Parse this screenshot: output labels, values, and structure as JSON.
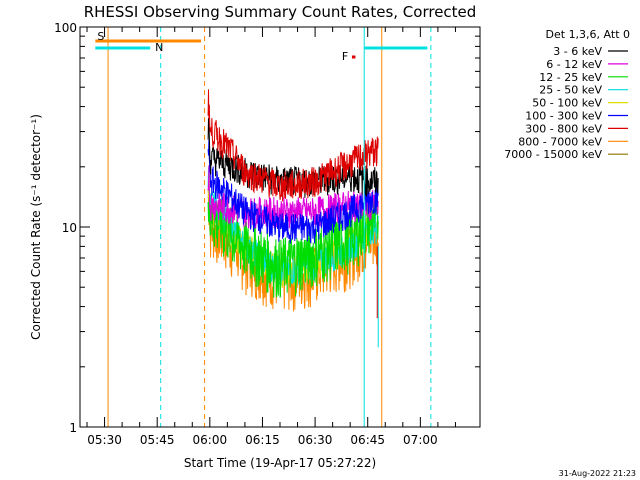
{
  "chart_data": {
    "type": "line",
    "title": "RHESSI Observing Summary Count Rates, Corrected",
    "xlabel": "Start Time (19-Apr-17 05:27:22)",
    "ylabel": "Corrected Count Rate (s⁻¹ detector⁻¹)",
    "y_scale": "log",
    "ylim": [
      1,
      100
    ],
    "y_ticks": [
      1,
      10,
      100
    ],
    "y_tick_labels": [
      "1",
      "10",
      "100"
    ],
    "xlim_minutes_after_0500": [
      23,
      80
    ],
    "x_ticks": [
      {
        "t": 30,
        "label": "05:30"
      },
      {
        "t": 45,
        "label": "05:45"
      },
      {
        "t": 60,
        "label": "06:00"
      },
      {
        "t": 75,
        "label": "06:15"
      },
      {
        "t": 90,
        "label": "06:30"
      },
      {
        "t": 105,
        "label": "06:45"
      },
      {
        "t": 120,
        "label": "07:00"
      }
    ],
    "legend_title": "Det 1,3,6, Att 0",
    "legend_position": "right-outside",
    "series": [
      {
        "name": "3 - 6 keV",
        "color": "#000000",
        "times": [
          "06:01",
          "06:10",
          "06:20",
          "06:30",
          "06:40",
          "06:46"
        ],
        "values": [
          22,
          19,
          17,
          17,
          18,
          17
        ]
      },
      {
        "name": "6 - 12 keV",
        "color": "#dd00dd",
        "times": [
          "06:01",
          "06:10",
          "06:20",
          "06:30",
          "06:40",
          "06:46"
        ],
        "values": [
          13,
          12,
          12,
          12,
          13,
          13
        ]
      },
      {
        "name": "12 - 25 keV",
        "color": "#00dd00",
        "times": [
          "06:01",
          "06:10",
          "06:20",
          "06:30",
          "06:40",
          "06:46"
        ],
        "values": [
          11,
          8,
          6.5,
          7.5,
          9,
          11
        ]
      },
      {
        "name": "25 - 50 keV",
        "color": "#00dddd",
        "times": [
          "06:01",
          "06:10",
          "06:20",
          "06:30",
          "06:40",
          "06:46"
        ],
        "values": [
          13,
          8,
          6,
          6.5,
          8,
          10
        ]
      },
      {
        "name": "50 - 100 keV",
        "color": "#dddd00",
        "times": [
          "06:01",
          "06:10",
          "06:20",
          "06:30",
          "06:40",
          "06:46"
        ],
        "values": [
          12,
          8,
          6,
          6.5,
          8,
          10
        ]
      },
      {
        "name": "100 - 300 keV",
        "color": "#0000ff",
        "times": [
          "06:01",
          "06:10",
          "06:20",
          "06:30",
          "06:40",
          "06:46"
        ],
        "values": [
          17,
          12,
          10,
          10,
          12,
          14
        ]
      },
      {
        "name": "300 - 800 keV",
        "color": "#dd0000",
        "times": [
          "06:01",
          "06:10",
          "06:20",
          "06:30",
          "06:40",
          "06:46"
        ],
        "values": [
          30,
          19,
          16,
          17,
          21,
          24
        ]
      },
      {
        "name": "800 - 7000 keV",
        "color": "#ff8800",
        "times": [
          "06:01",
          "06:10",
          "06:20",
          "06:30",
          "06:40",
          "06:46"
        ],
        "values": [
          10,
          7,
          5.5,
          6,
          7.5,
          9
        ]
      },
      {
        "name": "7000 - 15000 keV",
        "color": "#8b7300",
        "times": [],
        "values": []
      }
    ],
    "flags": [
      {
        "label": "S",
        "color": "#ff8800",
        "start": "05:27:22",
        "end": "05:57:30"
      },
      {
        "label": "N",
        "color": "#00e0e0",
        "start": "05:27:22",
        "end": "05:43:00"
      },
      {
        "label": "F",
        "color": "#dd0000",
        "start": "06:40:30",
        "end": "06:41:30"
      },
      {
        "label": "",
        "color": "#00e0e0",
        "start": "06:44:00",
        "end": "07:02:00"
      }
    ],
    "markers": [
      {
        "time": "05:31:00",
        "color": "#ff8800",
        "style": "solid"
      },
      {
        "time": "05:46:00",
        "color": "#00e0e0",
        "style": "dashed"
      },
      {
        "time": "05:58:30",
        "color": "#ff8800",
        "style": "dashed"
      },
      {
        "time": "06:44:00",
        "color": "#00e0e0",
        "style": "solid"
      },
      {
        "time": "06:49:00",
        "color": "#ff8800",
        "style": "solid"
      },
      {
        "time": "07:03:00",
        "color": "#00e0e0",
        "style": "dashed"
      }
    ],
    "data_window": [
      "05:59:30",
      "06:48:00"
    ],
    "footer_date": "31-Aug-2022 21:23"
  }
}
